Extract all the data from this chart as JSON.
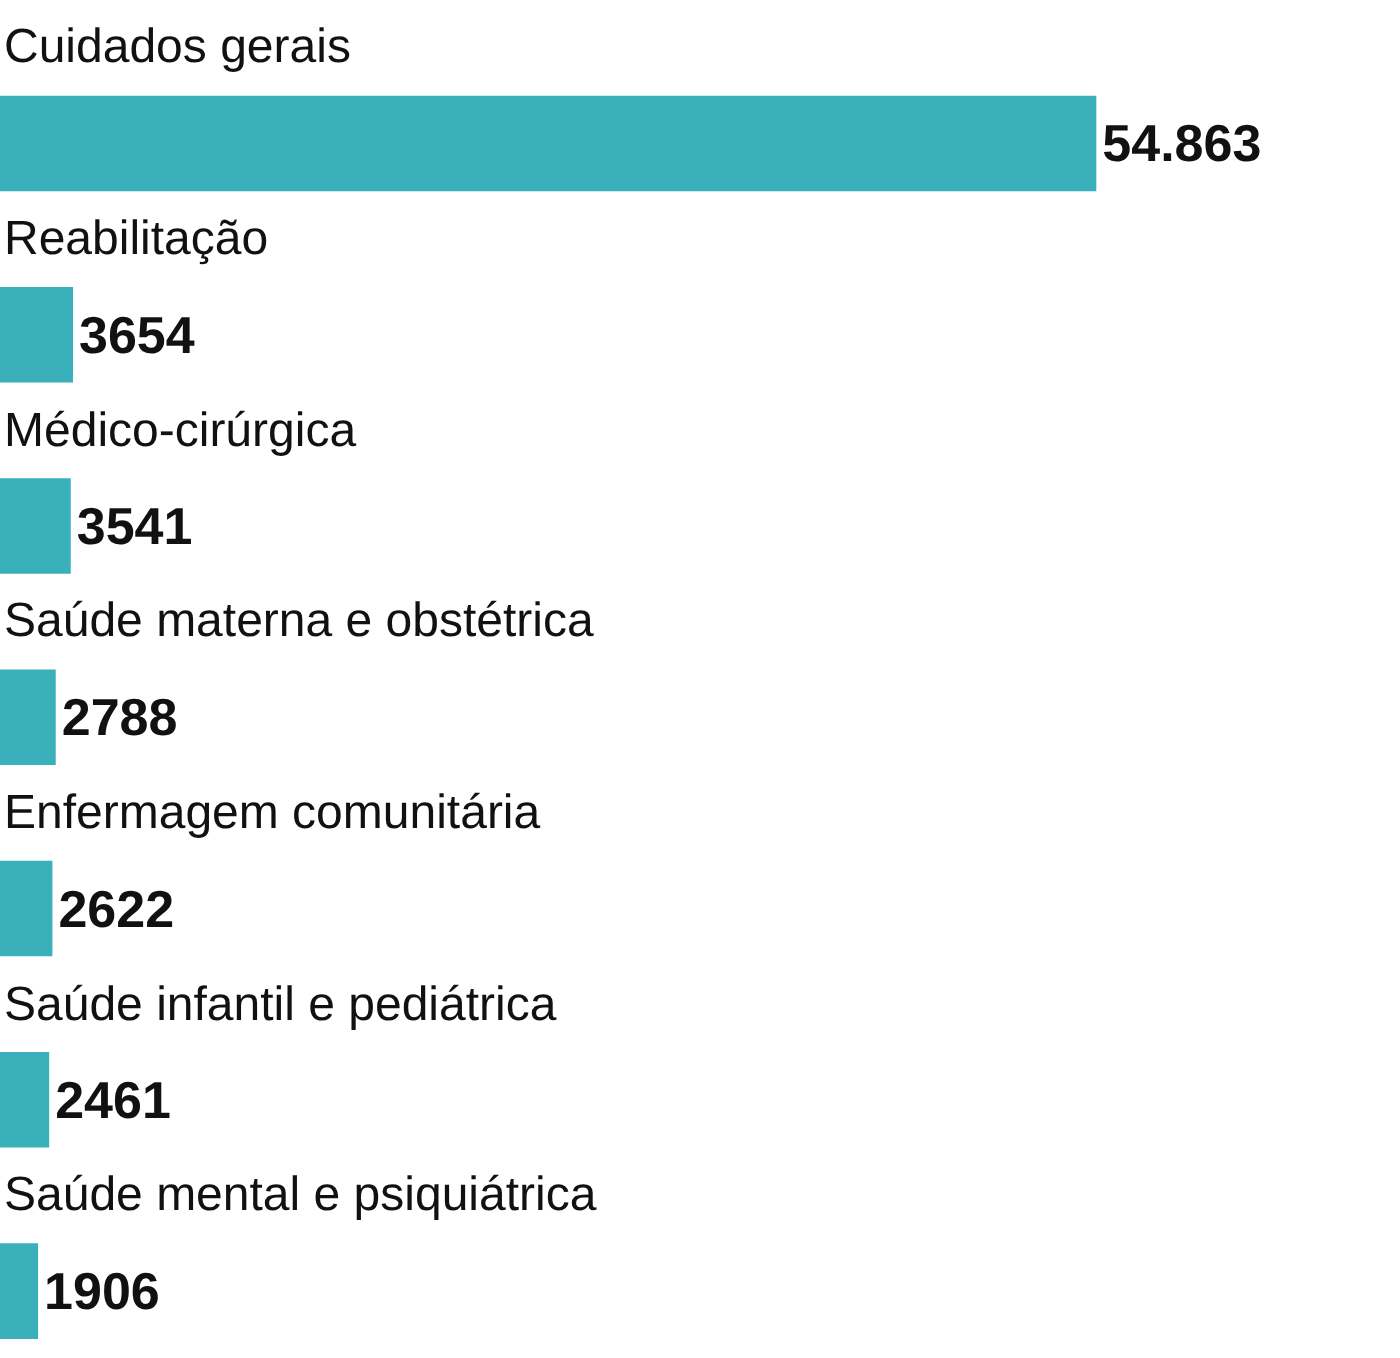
{
  "chart_data": {
    "type": "bar",
    "orientation": "horizontal",
    "categories": [
      "Cuidados gerais",
      "Reabilitação",
      "Médico-cirúrgica",
      "Saúde materna e obstétrica",
      "Enfermagem comunitária",
      "Saúde infantil e pediátrica",
      "Saúde mental e psiquiátrica"
    ],
    "values": [
      54863,
      3654,
      3541,
      2788,
      2622,
      2461,
      1906
    ],
    "value_labels": [
      "54.863",
      "3654",
      "3541",
      "2788",
      "2622",
      "2461",
      "1906"
    ],
    "color": "#3ab0bb"
  }
}
